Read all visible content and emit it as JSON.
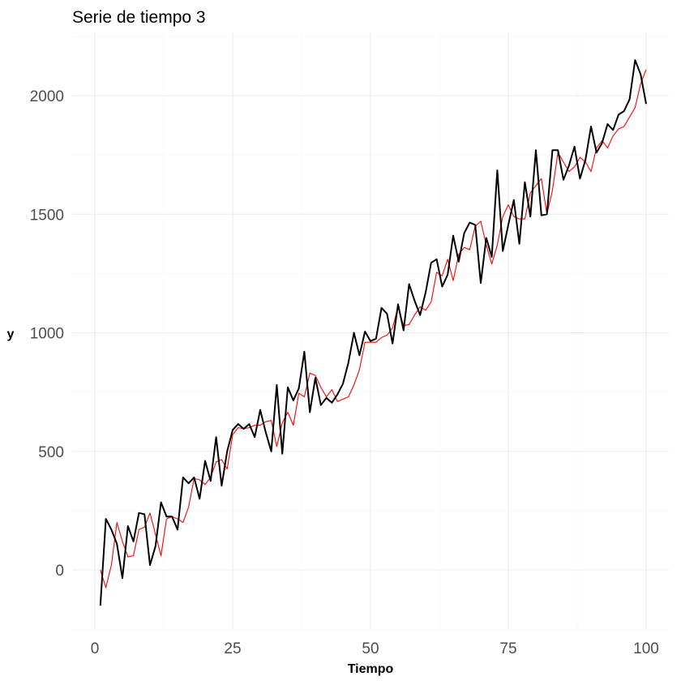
{
  "chart_data": {
    "type": "line",
    "title": "Serie de tiempo 3",
    "xlabel": "Tiempo",
    "ylabel": "y",
    "xlim": [
      1,
      100
    ],
    "ylim": [
      -150,
      2150
    ],
    "x_ticks": [
      0,
      25,
      50,
      75,
      100
    ],
    "y_ticks": [
      0,
      500,
      1000,
      1500,
      2000
    ],
    "x_tick_labels": [
      "0",
      "25",
      "50",
      "75",
      "100"
    ],
    "y_tick_labels": [
      "0",
      "500",
      "1000",
      "1500",
      "2000"
    ],
    "grid": true,
    "legend": "none",
    "colors": {
      "series_1": "#000000",
      "series_2": "#ff0000"
    },
    "x": [
      1,
      2,
      3,
      4,
      5,
      6,
      7,
      8,
      9,
      10,
      11,
      12,
      13,
      14,
      15,
      16,
      17,
      18,
      19,
      20,
      21,
      22,
      23,
      24,
      25,
      26,
      27,
      28,
      29,
      30,
      31,
      32,
      33,
      34,
      35,
      36,
      37,
      38,
      39,
      40,
      41,
      42,
      43,
      44,
      45,
      46,
      47,
      48,
      49,
      50,
      51,
      52,
      53,
      54,
      55,
      56,
      57,
      58,
      59,
      60,
      61,
      62,
      63,
      64,
      65,
      66,
      67,
      68,
      69,
      70,
      71,
      72,
      73,
      74,
      75,
      76,
      77,
      78,
      79,
      80,
      81,
      82,
      83,
      84,
      85,
      86,
      87,
      88,
      89,
      90,
      91,
      92,
      93,
      94,
      95,
      96,
      97,
      98,
      99,
      100
    ],
    "series": [
      {
        "values": [
          -150,
          215,
          170,
          110,
          -35,
          185,
          120,
          240,
          235,
          20,
          100,
          285,
          225,
          225,
          170,
          390,
          365,
          390,
          300,
          460,
          375,
          560,
          355,
          500,
          590,
          615,
          595,
          615,
          560,
          675,
          580,
          500,
          780,
          490,
          770,
          715,
          765,
          920,
          665,
          810,
          695,
          725,
          705,
          740,
          785,
          875,
          1000,
          905,
          1005,
          965,
          975,
          1105,
          1080,
          955,
          1120,
          1010,
          1205,
          1135,
          1075,
          1170,
          1295,
          1310,
          1195,
          1245,
          1410,
          1300,
          1420,
          1465,
          1455,
          1210,
          1400,
          1320,
          1685,
          1345,
          1455,
          1560,
          1375,
          1635,
          1490,
          1770,
          1495,
          1500,
          1770,
          1770,
          1645,
          1705,
          1785,
          1650,
          1730,
          1870,
          1760,
          1800,
          1880,
          1855,
          1920,
          1935,
          1985,
          2150,
          2090,
          1965
        ]
      },
      {
        "values": [
          0,
          -75,
          20,
          200,
          120,
          55,
          60,
          170,
          180,
          240,
          150,
          60,
          215,
          225,
          215,
          200,
          265,
          385,
          380,
          360,
          390,
          455,
          465,
          425,
          570,
          600,
          595,
          600,
          610,
          610,
          625,
          630,
          520,
          620,
          665,
          610,
          745,
          730,
          830,
          820,
          770,
          730,
          760,
          710,
          720,
          730,
          780,
          845,
          960,
          960,
          960,
          980,
          990,
          1020,
          1110,
          1030,
          1035,
          1075,
          1110,
          1095,
          1130,
          1255,
          1240,
          1310,
          1220,
          1330,
          1360,
          1350,
          1450,
          1470,
          1370,
          1290,
          1370,
          1490,
          1540,
          1490,
          1480,
          1480,
          1590,
          1620,
          1650,
          1500,
          1600,
          1760,
          1720,
          1680,
          1700,
          1740,
          1720,
          1680,
          1780,
          1810,
          1780,
          1830,
          1860,
          1870,
          1910,
          1950,
          2050,
          2110
        ]
      }
    ]
  }
}
